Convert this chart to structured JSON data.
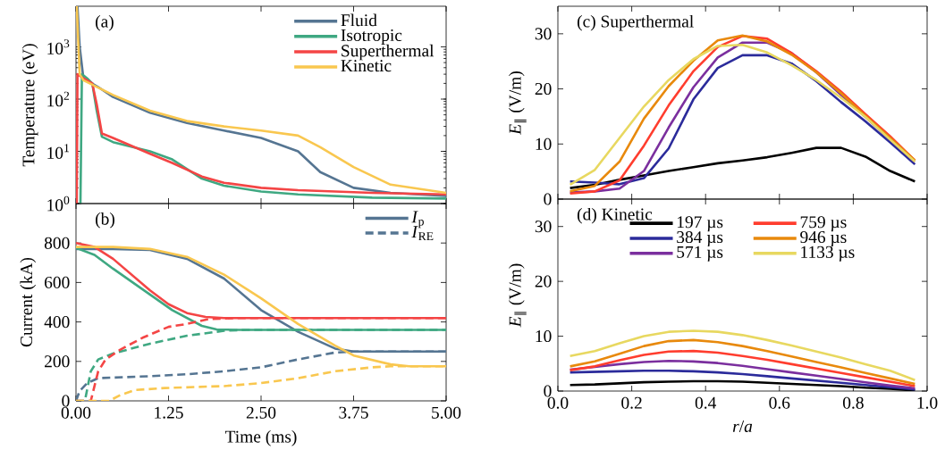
{
  "chart_data": [
    {
      "type": "line",
      "ylabel": "Temperature (eV)",
      "annotations": [
        "(a)"
      ],
      "log": "y",
      "xlim": [
        0,
        5
      ],
      "ylim": [
        1,
        6000
      ],
      "xticks": [
        0,
        1.25,
        2.5,
        3.75,
        5
      ],
      "yticks": [
        {
          "value": 1,
          "label": "10$^{0}$"
        },
        {
          "value": 10,
          "label": "10$^{1}$"
        },
        {
          "value": 100,
          "label": "10$^{2}$"
        },
        {
          "value": 1000,
          "label": "10$^{3}$"
        }
      ],
      "tick_labels": "y",
      "legend": "top right",
      "series": [
        {
          "name": "Fluid",
          "color": "#557592",
          "x": [
            0.02,
            0.05,
            0.1,
            0.3,
            0.5,
            1.0,
            1.5,
            2.0,
            2.5,
            3.0,
            3.3,
            3.75,
            4.25,
            5.0
          ],
          "values": [
            6000,
            1000,
            250,
            170,
            110,
            55,
            35,
            25,
            18,
            10,
            4,
            2.0,
            1.6,
            1.4
          ]
        },
        {
          "name": "Isotropic",
          "color": "#3fa882",
          "x": [
            0.06,
            0.08,
            0.15,
            0.22,
            0.28,
            0.35,
            0.5,
            1.0,
            1.3,
            1.7,
            2.0,
            2.5,
            3.0,
            4.0,
            5.0
          ],
          "values": [
            1,
            300,
            250,
            200,
            60,
            19,
            15,
            10,
            7,
            3,
            2.2,
            1.7,
            1.5,
            1.3,
            1.25
          ]
        },
        {
          "name": "Superthermal",
          "color": "#f44545",
          "x": [
            0.01,
            0.02,
            0.1,
            0.22,
            0.28,
            0.35,
            0.5,
            1.0,
            1.3,
            1.7,
            2.0,
            2.5,
            3.0,
            4.0,
            5.0
          ],
          "values": [
            1,
            300,
            250,
            200,
            80,
            22,
            18,
            9,
            6,
            3.3,
            2.5,
            2.0,
            1.8,
            1.6,
            1.5
          ]
        },
        {
          "name": "Kinetic",
          "color": "#f9c74f",
          "x": [
            0.01,
            0.05,
            0.1,
            0.5,
            1.0,
            1.5,
            2.0,
            2.5,
            3.0,
            3.3,
            3.75,
            4.25,
            5.0
          ],
          "values": [
            6000,
            300,
            230,
            120,
            60,
            38,
            30,
            25,
            20,
            12,
            5,
            2.3,
            1.6
          ]
        }
      ]
    },
    {
      "type": "line",
      "xlabel": "Time (ms)",
      "ylabel": "Current (kA)",
      "annotations": [
        "(b)"
      ],
      "xlim": [
        0,
        5
      ],
      "ylim": [
        0,
        1000
      ],
      "xticks": [
        {
          "value": 0,
          "label": "0.00"
        },
        {
          "value": 1.25,
          "label": "1.25"
        },
        {
          "value": 2.5,
          "label": "2.50"
        },
        {
          "value": 3.75,
          "label": "3.75"
        },
        {
          "value": 5,
          "label": "5.00"
        }
      ],
      "yticks": [
        0,
        200,
        400,
        600,
        800
      ],
      "legend": "top right",
      "series": [
        {
          "name": "*I*$_{p}$",
          "color": "#557592",
          "line_style": "solid",
          "x": [
            0,
            0.5,
            1.0,
            1.5,
            2.0,
            2.5,
            3.0,
            3.5,
            3.75,
            5.0
          ],
          "values": [
            770,
            770,
            765,
            720,
            620,
            460,
            350,
            265,
            250,
            250
          ]
        },
        {
          "name": "*I*$_{RE}$",
          "color": "#557592",
          "line_style": "dashed",
          "x": [
            0,
            0.05,
            0.15,
            0.3,
            1.0,
            1.5,
            2.0,
            2.5,
            3.0,
            3.5,
            3.75,
            5.0
          ],
          "values": [
            0,
            50,
            90,
            115,
            125,
            135,
            150,
            170,
            210,
            245,
            250,
            250
          ]
        },
        {
          "color": "#3fa882",
          "line_style": "solid",
          "x": [
            0,
            0.25,
            0.5,
            0.9,
            1.3,
            1.7,
            1.9,
            2.2,
            5.0
          ],
          "values": [
            775,
            740,
            670,
            565,
            460,
            380,
            362,
            360,
            360
          ]
        },
        {
          "color": "#3fa882",
          "line_style": "dashed",
          "x": [
            0,
            0.12,
            0.2,
            0.3,
            0.5,
            1.0,
            1.5,
            2.0,
            2.3,
            5.0
          ],
          "values": [
            0,
            0,
            150,
            210,
            240,
            290,
            330,
            355,
            360,
            360
          ]
        },
        {
          "color": "#f44545",
          "line_style": "solid",
          "x": [
            0,
            0.25,
            0.5,
            0.75,
            1.0,
            1.25,
            1.5,
            1.75,
            2.0,
            5.0
          ],
          "values": [
            800,
            780,
            720,
            640,
            560,
            490,
            445,
            425,
            420,
            420
          ]
        },
        {
          "color": "#f44545",
          "line_style": "dashed",
          "x": [
            0,
            0.2,
            0.3,
            0.4,
            0.6,
            0.9,
            1.25,
            1.5,
            1.8,
            2.2,
            5.0
          ],
          "values": [
            0,
            0,
            150,
            210,
            260,
            320,
            375,
            390,
            415,
            420,
            420
          ]
        },
        {
          "color": "#f9c74f",
          "line_style": "solid",
          "x": [
            0,
            0.5,
            1.0,
            1.5,
            2.0,
            2.5,
            3.0,
            3.5,
            3.75,
            4.25,
            4.5,
            5.0
          ],
          "values": [
            780,
            780,
            770,
            730,
            640,
            520,
            390,
            280,
            230,
            185,
            175,
            175
          ]
        },
        {
          "color": "#f9c74f",
          "line_style": "dashed",
          "x": [
            0,
            0.45,
            0.6,
            0.8,
            1.2,
            2.0,
            2.5,
            3.0,
            3.5,
            4.0,
            4.25,
            5.0
          ],
          "values": [
            0,
            0,
            30,
            55,
            65,
            75,
            90,
            115,
            150,
            170,
            175,
            175
          ]
        }
      ]
    },
    {
      "type": "line",
      "ylabel": "*E*$_{∥}$ (V/m)",
      "annotations": [
        "(c) Superthermal"
      ],
      "xlim": [
        0,
        1
      ],
      "ylim": [
        0,
        35
      ],
      "xticks": [
        0,
        0.2,
        0.4,
        0.6,
        0.8,
        1.0
      ],
      "yticks": [
        0,
        10,
        20,
        30
      ],
      "tick_labels": "y",
      "x": [
        0.033,
        0.1,
        0.167,
        0.233,
        0.3,
        0.367,
        0.433,
        0.5,
        0.567,
        0.633,
        0.7,
        0.767,
        0.833,
        0.9,
        0.967
      ],
      "series": [
        {
          "color": "#000000",
          "values": [
            2.0,
            2.6,
            3.5,
            4.3,
            5.1,
            5.8,
            6.5,
            7.0,
            7.6,
            8.4,
            9.3,
            9.3,
            7.7,
            5.1,
            3.2
          ]
        },
        {
          "color": "#2b2b9b",
          "values": [
            3.2,
            3.0,
            2.7,
            3.8,
            9.2,
            18.1,
            23.8,
            26.1,
            26.1,
            24.6,
            21.4,
            17.6,
            14.1,
            10.3,
            6.3
          ]
        },
        {
          "color": "#7b2f9e",
          "values": [
            1.2,
            1.4,
            1.9,
            5.1,
            13.0,
            20.3,
            25.7,
            28.4,
            28.4,
            26.5,
            23.0,
            18.9,
            14.9,
            10.8,
            6.8
          ]
        },
        {
          "color": "#ff3d2e",
          "values": [
            1.0,
            1.4,
            3.4,
            9.7,
            17.0,
            23.2,
            27.6,
            29.6,
            29.1,
            26.5,
            23.2,
            19.5,
            15.4,
            11.4,
            7.0
          ]
        },
        {
          "color": "#e8890c",
          "values": [
            1.4,
            2.4,
            6.8,
            14.6,
            20.5,
            25.1,
            28.8,
            29.7,
            28.6,
            26.2,
            23.0,
            19.2,
            15.1,
            11.1,
            7.0
          ]
        },
        {
          "color": "#e8d860",
          "values": [
            2.6,
            5.3,
            11.1,
            16.8,
            21.6,
            25.4,
            27.8,
            28.0,
            26.6,
            24.3,
            21.6,
            18.4,
            14.9,
            10.8,
            6.8
          ]
        }
      ]
    },
    {
      "type": "line",
      "xlabel": "*r*/*a*",
      "ylabel": "*E*$_{∥}$ (V/m)",
      "annotations": [
        "(d) Kinetic"
      ],
      "xlim": [
        0,
        1
      ],
      "ylim": [
        0,
        35
      ],
      "xticks": [
        {
          "value": 0,
          "label": "0.0"
        },
        {
          "value": 0.2,
          "label": "0.2"
        },
        {
          "value": 0.4,
          "label": "0.4"
        },
        {
          "value": 0.6,
          "label": "0.6"
        },
        {
          "value": 0.8,
          "label": "0.8"
        },
        {
          "value": 1.0,
          "label": "1.0"
        }
      ],
      "yticks": [
        0,
        10,
        20,
        30
      ],
      "legend": "top",
      "x": [
        0.033,
        0.1,
        0.167,
        0.233,
        0.3,
        0.367,
        0.433,
        0.5,
        0.567,
        0.633,
        0.7,
        0.767,
        0.833,
        0.9,
        0.967
      ],
      "series": [
        {
          "name": "197 µs",
          "color": "#000000",
          "values": [
            1.1,
            1.2,
            1.4,
            1.6,
            1.7,
            1.8,
            1.8,
            1.7,
            1.5,
            1.3,
            1.1,
            0.9,
            0.6,
            0.4,
            0.1
          ]
        },
        {
          "name": "384 µs",
          "color": "#2b2b9b",
          "values": [
            3.4,
            3.5,
            3.6,
            3.7,
            3.7,
            3.6,
            3.4,
            3.1,
            2.7,
            2.3,
            1.9,
            1.5,
            1.1,
            0.7,
            0.3
          ]
        },
        {
          "name": "571 µs",
          "color": "#7b2f9e",
          "values": [
            3.9,
            4.4,
            4.9,
            5.3,
            5.5,
            5.4,
            5.1,
            4.6,
            4.0,
            3.4,
            2.8,
            2.2,
            1.6,
            1.0,
            0.5
          ]
        },
        {
          "name": "759 µs",
          "color": "#ff3d2e",
          "values": [
            3.8,
            4.5,
            5.6,
            6.6,
            7.2,
            7.3,
            7.0,
            6.4,
            5.7,
            4.9,
            4.1,
            3.3,
            2.5,
            1.7,
            0.9
          ]
        },
        {
          "name": "946 µs",
          "color": "#e8890c",
          "values": [
            4.5,
            5.4,
            6.8,
            8.2,
            9.1,
            9.3,
            8.9,
            8.2,
            7.3,
            6.3,
            5.3,
            4.3,
            3.3,
            2.3,
            1.3
          ]
        },
        {
          "name": "1133 µs",
          "color": "#e8d860",
          "values": [
            6.4,
            7.3,
            8.7,
            10.0,
            10.8,
            11.0,
            10.8,
            10.2,
            9.3,
            8.3,
            7.2,
            6.1,
            4.9,
            3.7,
            2.0
          ]
        }
      ]
    }
  ]
}
